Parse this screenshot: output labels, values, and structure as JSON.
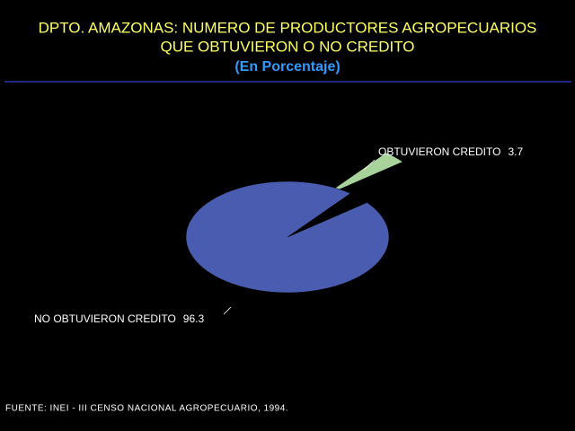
{
  "chart_data": {
    "type": "pie",
    "title": [
      "DPTO. AMAZONAS: NUMERO DE PRODUCTORES AGROPECUARIOS",
      "QUE OBTUVIERON O NO CREDITO"
    ],
    "subtitle": "(En Porcentaje)",
    "categories": [
      "OBTUVIERON CREDITO",
      "NO OBTUVIERON CREDITO"
    ],
    "values": [
      3.7,
      96.3
    ],
    "colors": [
      "#a8d49c",
      "#4a5cb0"
    ],
    "explode": [
      true,
      false
    ],
    "source": "FUENTE: INEI - III CENSO NACIONAL AGROPECUARIO, 1994."
  }
}
